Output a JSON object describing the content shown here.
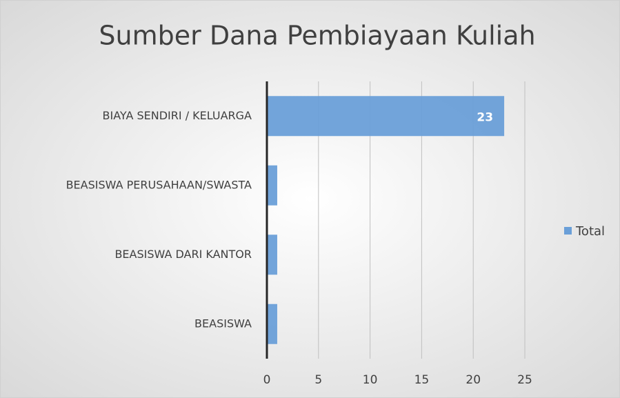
{
  "chart_data": {
    "type": "bar",
    "orientation": "horizontal",
    "title": "Sumber Dana Pembiayaan Kuliah",
    "categories": [
      "BIAYA SENDIRI / KELUARGA",
      "BEASISWA PERUSAHAAN/SWASTA",
      "BEASISWA DARI KANTOR",
      "BEASISWA"
    ],
    "series": [
      {
        "name": "Total",
        "color": "#6a9fd8",
        "values": [
          23,
          1,
          1,
          1
        ]
      }
    ],
    "xlim": [
      0,
      25
    ],
    "xticks": [
      0,
      5,
      10,
      15,
      20,
      25
    ],
    "grid": true,
    "legend": "right"
  }
}
